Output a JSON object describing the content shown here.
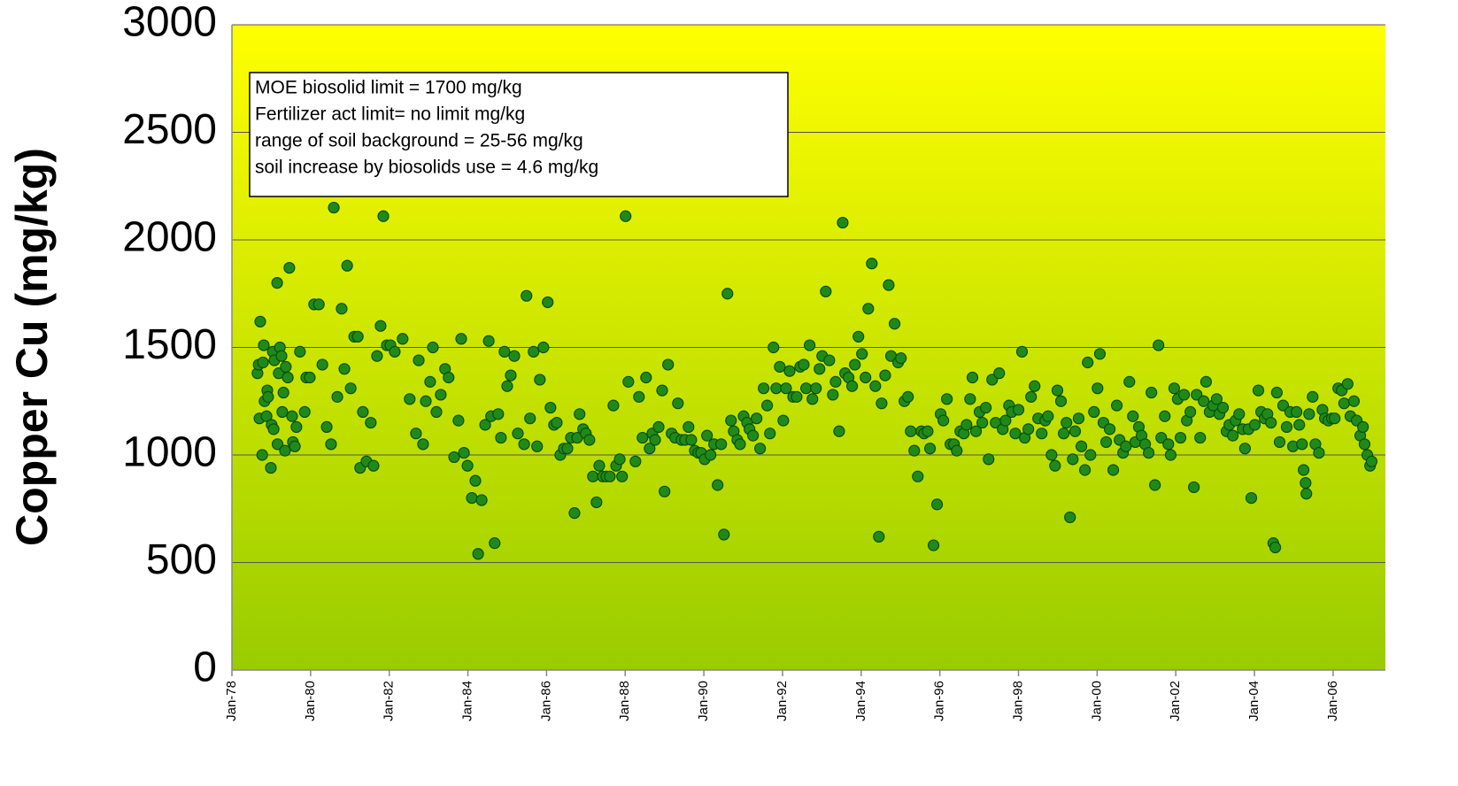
{
  "chart_data": {
    "type": "scatter",
    "ylabel": "Copper Cu (mg/kg)",
    "annotation": [
      "MOE biosolid limit = 1700 mg/kg",
      "Fertilizer act limit= no limit mg/kg",
      "range of soil background = 25-56 mg/kg",
      "soil increase by biosolids use = 4.6 mg/kg"
    ],
    "color": "#1f8a1a",
    "grid": true,
    "xlim": [
      1978,
      2007.33
    ],
    "xticks": [
      {
        "value": 1978,
        "label": "Jan-78"
      },
      {
        "value": 1980,
        "label": "Jan-80"
      },
      {
        "value": 1982,
        "label": "Jan-82"
      },
      {
        "value": 1984,
        "label": "Jan-84"
      },
      {
        "value": 1986,
        "label": "Jan-86"
      },
      {
        "value": 1988,
        "label": "Jan-88"
      },
      {
        "value": 1990,
        "label": "Jan-90"
      },
      {
        "value": 1992,
        "label": "Jan-92"
      },
      {
        "value": 1994,
        "label": "Jan-94"
      },
      {
        "value": 1996,
        "label": "Jan-96"
      },
      {
        "value": 1998,
        "label": "Jan-98"
      },
      {
        "value": 2000,
        "label": "Jan-00"
      },
      {
        "value": 2002,
        "label": "Jan-02"
      },
      {
        "value": 2004,
        "label": "Jan-04"
      },
      {
        "value": 2006,
        "label": "Jan-06"
      }
    ],
    "ylim": [
      0,
      3000
    ],
    "yticks": [
      0,
      500,
      1000,
      1500,
      2000,
      2500,
      3000
    ],
    "x": [
      1978.65,
      1978.68,
      1978.7,
      1978.72,
      1978.77,
      1978.79,
      1978.81,
      1978.83,
      1978.88,
      1978.9,
      1978.92,
      1978.99,
      1979.01,
      1979.04,
      1979.06,
      1979.08,
      1979.15,
      1979.16,
      1979.19,
      1979.22,
      1979.26,
      1979.28,
      1979.31,
      1979.35,
      1979.37,
      1979.42,
      1979.46,
      1979.53,
      1979.55,
      1979.6,
      1979.64,
      1979.73,
      1979.85,
      1979.89,
      1979.98,
      1980.09,
      1980.21,
      1980.3,
      1980.41,
      1980.52,
      1980.59,
      1980.68,
      1980.79,
      1980.86,
      1980.93,
      1981.02,
      1981.11,
      1981.2,
      1981.26,
      1981.33,
      1981.42,
      1981.53,
      1981.6,
      1981.69,
      1981.78,
      1981.85,
      1981.94,
      1982.03,
      1982.14,
      1982.34,
      1982.52,
      1982.68,
      1982.75,
      1982.86,
      1982.93,
      1983.04,
      1983.11,
      1983.2,
      1983.31,
      1983.42,
      1983.51,
      1983.65,
      1983.76,
      1983.83,
      1983.9,
      1983.99,
      1984.1,
      1984.19,
      1984.26,
      1984.35,
      1984.44,
      1984.53,
      1984.59,
      1984.68,
      1984.77,
      1984.84,
      1984.93,
      1985.0,
      1985.09,
      1985.18,
      1985.27,
      1985.43,
      1985.49,
      1985.58,
      1985.67,
      1985.76,
      1985.83,
      1985.92,
      1986.03,
      1986.1,
      1986.19,
      1986.26,
      1986.35,
      1986.44,
      1986.53,
      1986.62,
      1986.71,
      1986.78,
      1986.84,
      1986.93,
      1987.0,
      1987.09,
      1987.18,
      1987.27,
      1987.34,
      1987.43,
      1987.52,
      1987.61,
      1987.7,
      1987.77,
      1987.86,
      1987.92,
      1988.01,
      1988.08,
      1988.26,
      1988.35,
      1988.44,
      1988.53,
      1988.62,
      1988.69,
      1988.76,
      1988.85,
      1988.94,
      1989.0,
      1989.09,
      1989.18,
      1989.27,
      1989.34,
      1989.43,
      1989.52,
      1989.61,
      1989.68,
      1989.77,
      1989.86,
      1989.93,
      1990.02,
      1990.08,
      1990.17,
      1990.26,
      1990.35,
      1990.44,
      1990.51,
      1990.6,
      1990.69,
      1990.76,
      1990.85,
      1990.92,
      1991.01,
      1991.1,
      1991.16,
      1991.25,
      1991.34,
      1991.43,
      1991.52,
      1991.61,
      1991.68,
      1991.77,
      1991.84,
      1991.93,
      1992.02,
      1992.09,
      1992.18,
      1992.27,
      1992.36,
      1992.45,
      1992.54,
      1992.6,
      1992.69,
      1992.76,
      1992.85,
      1992.94,
      1993.01,
      1993.1,
      1993.19,
      1993.28,
      1993.35,
      1993.44,
      1993.53,
      1993.59,
      1993.68,
      1993.77,
      1993.84,
      1993.93,
      1994.02,
      1994.11,
      1994.18,
      1994.27,
      1994.36,
      1994.45,
      1994.52,
      1994.61,
      1994.7,
      1994.76,
      1994.85,
      1994.94,
      1995.01,
      1995.1,
      1995.19,
      1995.26,
      1995.35,
      1995.44,
      1995.53,
      1995.6,
      1995.69,
      1995.75,
      1995.84,
      1995.93,
      1996.02,
      1996.09,
      1996.18,
      1996.27,
      1996.36,
      1996.43,
      1996.52,
      1996.61,
      1996.68,
      1996.77,
      1996.83,
      1996.92,
      1997.01,
      1997.08,
      1997.17,
      1997.24,
      1997.33,
      1997.42,
      1997.51,
      1997.6,
      1997.67,
      1997.76,
      1997.83,
      1997.92,
      1998.0,
      1998.09,
      1998.16,
      1998.25,
      1998.32,
      1998.41,
      1998.5,
      1998.59,
      1998.68,
      1998.75,
      1998.84,
      1998.93,
      1998.99,
      1999.08,
      1999.15,
      1999.22,
      1999.31,
      1999.38,
      1999.44,
      1999.53,
      1999.6,
      1999.69,
      1999.76,
      1999.83,
      1999.92,
      2000.01,
      2000.07,
      2000.16,
      2000.23,
      2000.32,
      2000.41,
      2000.5,
      2000.57,
      2000.66,
      2000.73,
      2000.82,
      2000.91,
      2000.97,
      2001.06,
      2001.13,
      2001.22,
      2001.31,
      2001.38,
      2001.47,
      2001.56,
      2001.63,
      2001.72,
      2001.81,
      2001.87,
      2001.96,
      2002.05,
      2002.12,
      2002.21,
      2002.28,
      2002.37,
      2002.46,
      2002.53,
      2002.62,
      2002.71,
      2002.77,
      2002.86,
      2002.95,
      2003.04,
      2003.11,
      2003.2,
      2003.29,
      2003.36,
      2003.45,
      2003.52,
      2003.61,
      2003.7,
      2003.76,
      2003.85,
      2003.92,
      2004.01,
      2004.1,
      2004.17,
      2004.26,
      2004.33,
      2004.42,
      2004.48,
      2004.53,
      2004.57,
      2004.64,
      2004.73,
      2004.82,
      2004.91,
      2004.98,
      2005.07,
      2005.14,
      2005.21,
      2005.25,
      2005.3,
      2005.32,
      2005.39,
      2005.48,
      2005.55,
      2005.64,
      2005.73,
      2005.79,
      2005.88,
      2005.97,
      2006.04,
      2006.13,
      2006.22,
      2006.28,
      2006.37,
      2006.44,
      2006.53,
      2006.6,
      2006.69,
      2006.76,
      2006.8,
      2006.87,
      2006.94,
      2006.98
    ],
    "values": [
      1380,
      1420,
      1170,
      1620,
      1000,
      1430,
      1510,
      1250,
      1180,
      1300,
      1270,
      940,
      1140,
      1480,
      1120,
      1440,
      1800,
      1050,
      1380,
      1500,
      1460,
      1200,
      1290,
      1020,
      1410,
      1360,
      1870,
      1180,
      1060,
      1040,
      1130,
      1480,
      1200,
      1360,
      1360,
      1700,
      1700,
      1420,
      1130,
      1050,
      2150,
      1270,
      1680,
      1400,
      1880,
      1310,
      1550,
      1550,
      940,
      1200,
      970,
      1150,
      950,
      1460,
      1600,
      2110,
      1510,
      1510,
      1480,
      1540,
      1260,
      1100,
      1440,
      1050,
      1250,
      1340,
      1500,
      1200,
      1280,
      1400,
      1360,
      990,
      1160,
      1540,
      1010,
      950,
      800,
      880,
      540,
      790,
      1140,
      1530,
      1180,
      590,
      1190,
      1080,
      1480,
      1320,
      1370,
      1460,
      1100,
      1050,
      1740,
      1170,
      1480,
      1040,
      1350,
      1500,
      1710,
      1220,
      1140,
      1150,
      1000,
      1030,
      1030,
      1080,
      730,
      1080,
      1190,
      1120,
      1100,
      1070,
      900,
      780,
      950,
      900,
      900,
      900,
      1230,
      950,
      980,
      900,
      2110,
      1340,
      970,
      1270,
      1080,
      1360,
      1030,
      1100,
      1070,
      1130,
      1300,
      830,
      1420,
      1100,
      1080,
      1240,
      1070,
      1070,
      1130,
      1070,
      1020,
      1010,
      1010,
      980,
      1090,
      1000,
      1050,
      860,
      1050,
      630,
      1750,
      1160,
      1110,
      1070,
      1050,
      1180,
      1150,
      1120,
      1090,
      1170,
      1030,
      1310,
      1230,
      1100,
      1500,
      1310,
      1410,
      1160,
      1310,
      1390,
      1270,
      1270,
      1410,
      1420,
      1310,
      1510,
      1260,
      1310,
      1400,
      1460,
      1760,
      1440,
      1280,
      1340,
      1110,
      2080,
      1380,
      1360,
      1320,
      1420,
      1550,
      1470,
      1360,
      1680,
      1890,
      1320,
      620,
      1240,
      1370,
      1790,
      1460,
      1610,
      1430,
      1450,
      1250,
      1270,
      1110,
      1020,
      900,
      1110,
      1100,
      1110,
      1030,
      580,
      770,
      1190,
      1160,
      1260,
      1050,
      1050,
      1020,
      1110,
      1100,
      1140,
      1260,
      1360,
      1110,
      1200,
      1150,
      1220,
      980,
      1350,
      1150,
      1380,
      1120,
      1160,
      1230,
      1200,
      1100,
      1210,
      1480,
      1080,
      1120,
      1270,
      1320,
      1170,
      1100,
      1160,
      1180,
      1000,
      950,
      1300,
      1250,
      1100,
      1150,
      710,
      980,
      1110,
      1170,
      1040,
      930,
      1430,
      1000,
      1200,
      1310,
      1470,
      1150,
      1060,
      1120,
      930,
      1230,
      1070,
      1010,
      1040,
      1340,
      1180,
      1060,
      1130,
      1090,
      1050,
      1010,
      1290,
      860,
      1510,
      1080,
      1180,
      1050,
      1000,
      1310,
      1260,
      1080,
      1280,
      1160,
      1200,
      850,
      1280,
      1080,
      1250,
      1340,
      1200,
      1230,
      1260,
      1190,
      1220,
      1110,
      1140,
      1090,
      1160,
      1190,
      1120,
      1030,
      1120,
      800,
      1140,
      1300,
      1200,
      1170,
      1190,
      1150,
      590,
      570,
      1290,
      1060,
      1230,
      1130,
      1200,
      1040,
      1200,
      1140,
      1050,
      930,
      870,
      820,
      1190,
      1270,
      1050,
      1010,
      1210,
      1170,
      1160,
      1170,
      1170,
      1310,
      1300,
      1240,
      1330,
      1180,
      1250,
      1160,
      1090,
      1130,
      1050,
      1000,
      950,
      970
    ]
  }
}
